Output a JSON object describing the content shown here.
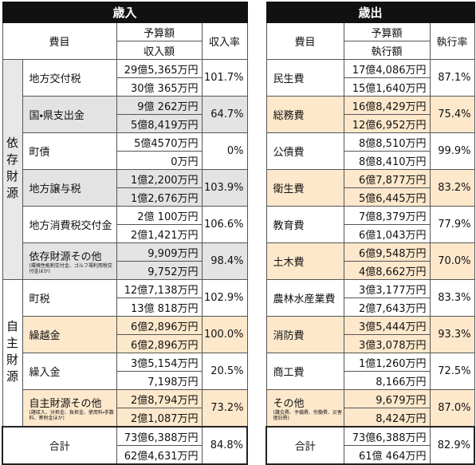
{
  "revenue": {
    "title": "歳入",
    "headers": {
      "item": "費目",
      "budget": "予算額",
      "actual": "収入額",
      "rate": "収入率"
    },
    "groups": [
      {
        "label": "依存財源",
        "rows": [
          {
            "item": "地方交付税",
            "budget": "29億5,365万円",
            "actual": "30億 365万円",
            "rate": "101.7%"
          },
          {
            "item": "国・県支出金",
            "budget": "9億 262万円",
            "actual": "5億8,419万円",
            "rate": "64.7%",
            "highlight": "#e3e3e3"
          },
          {
            "item": "町債",
            "budget": "5億4570万円",
            "actual": "0万円",
            "rate": "0%"
          },
          {
            "item": "地方譲与税",
            "budget": "1億2,200万円",
            "actual": "1億2,676万円",
            "rate": "103.9%",
            "highlight": "#e3e3e3"
          },
          {
            "item": "地方消費税交付金",
            "budget": "2億 100万円",
            "actual": "2億1,421万円",
            "rate": "106.6%"
          },
          {
            "item": "依存財源その他",
            "note": "(環境性能割交付金、ゴルフ場利用税交付金ほか)",
            "budget": "9,909万円",
            "actual": "9,752万円",
            "rate": "98.4%",
            "highlight": "#e3e3e3"
          }
        ]
      },
      {
        "label": "自主財源",
        "rows": [
          {
            "item": "町税",
            "budget": "12億7,138万円",
            "actual": "13億 818万円",
            "rate": "102.9%"
          },
          {
            "item": "繰越金",
            "budget": "6億2,896万円",
            "actual": "6億2,896万円",
            "rate": "100.0%",
            "highlight": "#fde8cc"
          },
          {
            "item": "繰入金",
            "budget": "3億5,154万円",
            "actual": "7,198万円",
            "rate": "20.5%"
          },
          {
            "item": "自主財源その他",
            "note": "(諸収入、分担金、負担金、使用料・手数料、寄附金ほか)",
            "budget": "2億8,794万円",
            "actual": "2億1,087万円",
            "rate": "73.2%",
            "highlight": "#fde8cc"
          }
        ]
      }
    ],
    "total": {
      "item": "合計",
      "budget": "73億6,388万円",
      "actual": "62億4,631万円",
      "rate": "84.8%"
    }
  },
  "expenditure": {
    "title": "歳出",
    "headers": {
      "item": "費目",
      "budget": "予算額",
      "actual": "執行額",
      "rate": "執行率"
    },
    "rows": [
      {
        "item": "民生費",
        "budget": "17億4,086万円",
        "actual": "15億1,640万円",
        "rate": "87.1%"
      },
      {
        "item": "総務費",
        "budget": "16億8,429万円",
        "actual": "12億6,952万円",
        "rate": "75.4%",
        "highlight": "#fde8cc"
      },
      {
        "item": "公債費",
        "budget": "8億8,510万円",
        "actual": "8億8,410万円",
        "rate": "99.9%"
      },
      {
        "item": "衛生費",
        "budget": "6億7,877万円",
        "actual": "5億6,445万円",
        "rate": "83.2%",
        "highlight": "#fde8cc"
      },
      {
        "item": "教育費",
        "budget": "7億8,379万円",
        "actual": "6億1,043万円",
        "rate": "77.9%"
      },
      {
        "item": "土木費",
        "budget": "6億9,548万円",
        "actual": "4億8,662万円",
        "rate": "70.0%",
        "highlight": "#fde8cc"
      },
      {
        "item": "農林水産業費",
        "budget": "3億3,177万円",
        "actual": "2億7,643万円",
        "rate": "83.3%"
      },
      {
        "item": "消防費",
        "budget": "3億5,444万円",
        "actual": "3億3,078万円",
        "rate": "93.3%",
        "highlight": "#fde8cc"
      },
      {
        "item": "商工費",
        "budget": "1億1,260万円",
        "actual": "8,166万円",
        "rate": "72.5%"
      },
      {
        "item": "その他",
        "note": "(議会費、予備費、労働費、災害復旧費)",
        "budget": "9,679万円",
        "actual": "8,424万円",
        "rate": "87.0%",
        "highlight": "#fde8cc"
      }
    ],
    "total": {
      "item": "合計",
      "budget": "73億6,388万円",
      "actual": "61億 464万円",
      "rate": "82.9%"
    }
  }
}
